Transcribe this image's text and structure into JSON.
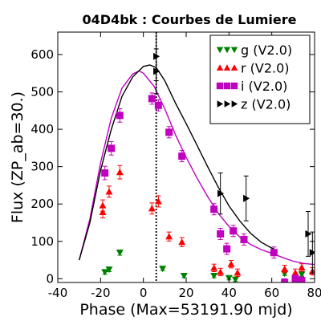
{
  "chart_data": {
    "type": "scatter",
    "title": "04D4bk : Courbes de Lumiere",
    "xlabel": "Phase (Max=53191.90 mjd)",
    "ylabel": "Flux (ZP_ab=30.)",
    "xlim": [
      -40,
      80
    ],
    "ylim": [
      -10,
      660
    ],
    "xticks": [
      -40,
      -20,
      0,
      20,
      40,
      60,
      80
    ],
    "yticks": [
      0,
      100,
      200,
      300,
      400,
      500,
      600
    ],
    "xtick_labels": [
      "-40",
      "-20",
      "0",
      "20",
      "40",
      "60",
      "80"
    ],
    "ytick_labels": [
      "0",
      "100",
      "200",
      "300",
      "400",
      "500",
      "600"
    ],
    "grid": false,
    "legend_position": "top-right",
    "vline_x": 6,
    "series": [
      {
        "name": "g (V2.0)",
        "color": "#008000",
        "marker": "triangle-down",
        "points": [
          {
            "x": -18,
            "y": 18,
            "err": 6
          },
          {
            "x": -16,
            "y": 25,
            "err": 6
          },
          {
            "x": -11,
            "y": 70,
            "err": 7
          },
          {
            "x": 9,
            "y": 27,
            "err": 5
          },
          {
            "x": 19,
            "y": 8,
            "err": 5
          },
          {
            "x": 33,
            "y": 8,
            "err": 5
          },
          {
            "x": 40,
            "y": 2,
            "err": 5
          },
          {
            "x": 43,
            "y": -2,
            "err": 5
          },
          {
            "x": 66,
            "y": 14,
            "err": 5
          },
          {
            "x": 74,
            "y": 12,
            "err": 5
          }
        ]
      },
      {
        "name": "r (V2.0)",
        "color": "#ff0000",
        "marker": "triangle-up",
        "points": [
          {
            "x": -19,
            "y": 178,
            "err": 15
          },
          {
            "x": -19,
            "y": 196,
            "err": 15
          },
          {
            "x": -16,
            "y": 233,
            "err": 15
          },
          {
            "x": -11,
            "y": 285,
            "err": 18
          },
          {
            "x": 4,
            "y": 188,
            "err": 15
          },
          {
            "x": 7,
            "y": 207,
            "err": 15
          },
          {
            "x": 12,
            "y": 113,
            "err": 12
          },
          {
            "x": 18,
            "y": 98,
            "err": 12
          },
          {
            "x": 33,
            "y": 29,
            "err": 10
          },
          {
            "x": 36,
            "y": 18,
            "err": 10
          },
          {
            "x": 41,
            "y": 39,
            "err": 10
          },
          {
            "x": 44,
            "y": 16,
            "err": 10
          },
          {
            "x": 66,
            "y": 26,
            "err": 10
          },
          {
            "x": 71,
            "y": 16,
            "err": 10
          },
          {
            "x": 74,
            "y": 30,
            "err": 10
          },
          {
            "x": 79,
            "y": 20,
            "err": 10
          }
        ]
      },
      {
        "name": "i (V2.0)",
        "color": "#bf00bf",
        "marker": "square",
        "points": [
          {
            "x": -18,
            "y": 283,
            "err": 18
          },
          {
            "x": -15,
            "y": 349,
            "err": 18
          },
          {
            "x": -11,
            "y": 437,
            "err": 18
          },
          {
            "x": 4,
            "y": 482,
            "err": 15
          },
          {
            "x": 7,
            "y": 464,
            "err": 15
          },
          {
            "x": 12,
            "y": 392,
            "err": 15
          },
          {
            "x": 18,
            "y": 328,
            "err": 15
          },
          {
            "x": 33,
            "y": 186,
            "err": 15
          },
          {
            "x": 36,
            "y": 120,
            "err": 15
          },
          {
            "x": 39,
            "y": 80,
            "err": 15
          },
          {
            "x": 42,
            "y": 128,
            "err": 15
          },
          {
            "x": 47,
            "y": 105,
            "err": 15
          },
          {
            "x": 61,
            "y": 70,
            "err": 15
          },
          {
            "x": 66,
            "y": -10,
            "err": 10
          },
          {
            "x": 71,
            "y": 0,
            "err": 10
          },
          {
            "x": 74,
            "y": -5,
            "err": 10
          }
        ]
      },
      {
        "name": "z (V2.0)",
        "color": "#000000",
        "marker": "triangle-right",
        "points": [
          {
            "x": 6,
            "y": 555,
            "err": 60
          },
          {
            "x": 6,
            "y": 595,
            "err": 65
          },
          {
            "x": 36,
            "y": 228,
            "err": 55
          },
          {
            "x": 48,
            "y": 215,
            "err": 60
          },
          {
            "x": 77,
            "y": 120,
            "err": 60
          },
          {
            "x": 79,
            "y": 70,
            "err": 55
          }
        ]
      }
    ],
    "model_curves": [
      {
        "band": "i",
        "color": "#bf00bf",
        "points": [
          [
            -30,
            50
          ],
          [
            -25,
            160
          ],
          [
            -20,
            310
          ],
          [
            -15,
            430
          ],
          [
            -10,
            510
          ],
          [
            -5,
            548
          ],
          [
            -2,
            556
          ],
          [
            0,
            550
          ],
          [
            5,
            515
          ],
          [
            10,
            455
          ],
          [
            15,
            385
          ],
          [
            20,
            325
          ],
          [
            25,
            270
          ],
          [
            30,
            220
          ],
          [
            35,
            175
          ],
          [
            40,
            140
          ],
          [
            45,
            112
          ],
          [
            50,
            92
          ],
          [
            55,
            78
          ],
          [
            60,
            68
          ],
          [
            65,
            57
          ],
          [
            70,
            47
          ],
          [
            75,
            41
          ],
          [
            80,
            38
          ]
        ]
      },
      {
        "band": "z",
        "color": "#000000",
        "points": [
          [
            -30,
            50
          ],
          [
            -25,
            150
          ],
          [
            -20,
            290
          ],
          [
            -15,
            400
          ],
          [
            -10,
            488
          ],
          [
            -5,
            540
          ],
          [
            0,
            568
          ],
          [
            3,
            572
          ],
          [
            6,
            565
          ],
          [
            10,
            530
          ],
          [
            15,
            470
          ],
          [
            20,
            415
          ],
          [
            25,
            358
          ],
          [
            30,
            300
          ],
          [
            35,
            245
          ],
          [
            40,
            195
          ],
          [
            45,
            155
          ],
          [
            50,
            122
          ],
          [
            55,
            98
          ],
          [
            60,
            82
          ],
          [
            61,
            80
          ]
        ]
      }
    ]
  }
}
